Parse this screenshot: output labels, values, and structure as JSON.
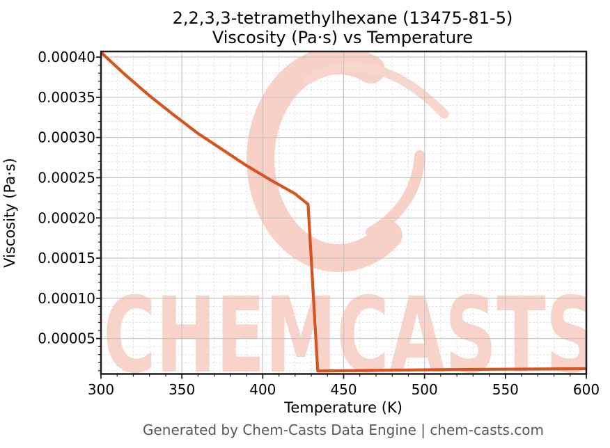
{
  "header": {
    "title_line1": "2,2,3,3-tetramethylhexane (13475-81-5)",
    "title_line2": "Viscosity (Pa·s) vs Temperature"
  },
  "footer": {
    "text": "Generated by Chem-Casts Data Engine | chem-casts.com"
  },
  "watermark": {
    "text": "CHEMCASTS",
    "logo": "brushstroke-c-swirl",
    "color": "#f8d0c6"
  },
  "colors": {
    "series_line": "#d5541f",
    "grid_major": "#c2c2c2",
    "grid_minor": "#dbdbdb",
    "spine": "#1c1c1c",
    "background": "#ffffff",
    "footer_gray": "#575757"
  },
  "chart_data": {
    "type": "line",
    "title": "2,2,3,3-tetramethylhexane (13475-81-5) — Viscosity (Pa·s) vs Temperature",
    "xlabel": "Temperature (K)",
    "ylabel": "Viscosity (Pa·s)",
    "xlim": [
      300,
      600
    ],
    "ylim": [
      6e-06,
      0.000407
    ],
    "x_major_ticks": [
      300,
      350,
      400,
      450,
      500,
      550,
      600
    ],
    "x_minor_step": 10,
    "y_major_ticks": [
      5e-05,
      0.0001,
      0.00015,
      0.0002,
      0.00025,
      0.0003,
      0.00035,
      0.0004
    ],
    "y_minor_step": 1e-05,
    "y_tick_decimals": 5,
    "grid": "major-solid-minor-dashed",
    "legend": "none",
    "series": [
      {
        "name": "viscosity",
        "color": "#d5541f",
        "x": [
          300,
          315,
          330,
          345,
          360,
          375,
          390,
          405,
          420,
          428,
          434,
          450,
          500,
          550,
          600
        ],
        "y": [
          0.000406,
          0.000378,
          0.000352,
          0.000328,
          0.000305,
          0.000285,
          0.000265,
          0.000247,
          0.00023,
          0.000217,
          9.6e-06,
          1e-05,
          1.11e-05,
          1.19e-05,
          1.25e-05
        ]
      }
    ],
    "annotations": {
      "phase_change_drop_at_K": 434,
      "liquid_branch_end_K": 428
    }
  }
}
